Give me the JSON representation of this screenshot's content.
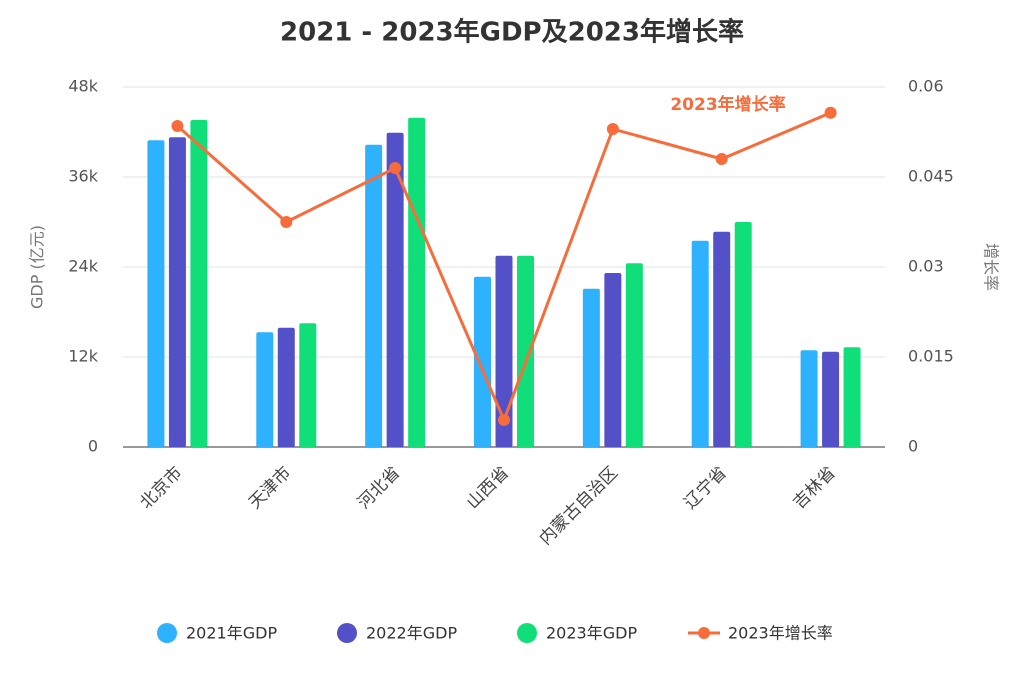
{
  "chart_data": {
    "type": "bar-line",
    "title": "2021 - 2023年GDP及2023年增长率",
    "y_label": "GDP (亿元)",
    "y2_label": "增长率",
    "annotation": "2023年增长率",
    "categories": [
      "北京市",
      "天津市",
      "河北省",
      "山西省",
      "内蒙古自治区",
      "辽宁省",
      "吉林省"
    ],
    "series": [
      {
        "name": "2021年GDP",
        "color": "#2eb2fd",
        "type": "bar",
        "values": [
          40900,
          15300,
          40300,
          22700,
          21100,
          27500,
          12900
        ]
      },
      {
        "name": "2022年GDP",
        "color": "#5450c8",
        "type": "bar",
        "values": [
          41300,
          15900,
          41900,
          25500,
          23200,
          28700,
          12700
        ]
      },
      {
        "name": "2023年GDP",
        "color": "#10df79",
        "type": "bar",
        "values": [
          43600,
          16500,
          43900,
          25500,
          24500,
          30000,
          13300
        ]
      },
      {
        "name": "2023年增长率",
        "color": "#f76c3a",
        "type": "line",
        "axis": "y2",
        "values": [
          0.0535,
          0.0375,
          0.0465,
          0.0045,
          0.053,
          0.048,
          0.0557
        ]
      }
    ],
    "ylim": [
      0,
      48000
    ],
    "yticks": [
      0,
      {
        "value": 12000,
        "label": "12k"
      },
      {
        "value": 24000,
        "label": "24k"
      },
      {
        "value": 36000,
        "label": "36k"
      },
      {
        "value": 48000,
        "label": "48k"
      }
    ],
    "y2lim": [
      0,
      0.06
    ],
    "y2ticks": [
      0,
      0.015,
      0.03,
      0.045,
      0.06
    ],
    "grid": true,
    "legend": "bottom"
  }
}
